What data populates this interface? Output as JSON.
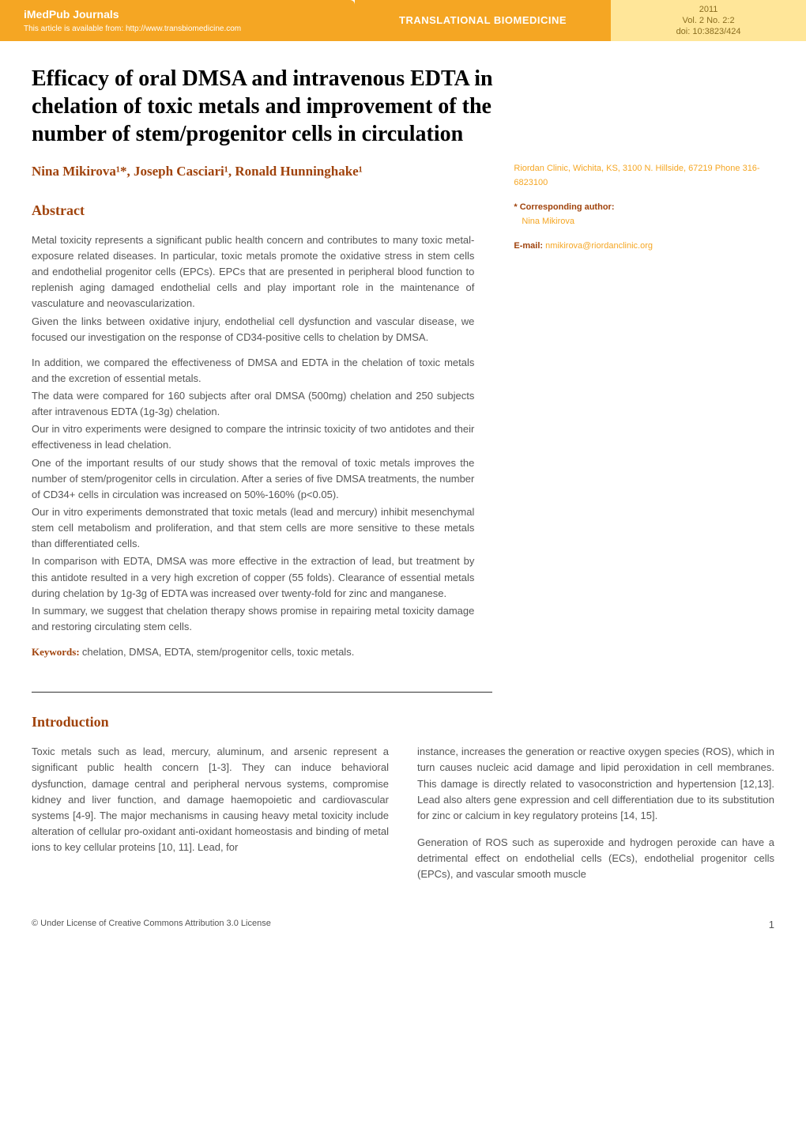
{
  "header": {
    "journal_name": "iMedPub Journals",
    "article_link_prefix": "This article is available from: ",
    "article_link_url": "http://www.transbiomedicine.com",
    "center_title": "TRANSLATIONAL BIOMEDICINE",
    "year": "2011",
    "volume": "Vol. 2 No. 2:2",
    "doi": "doi: 10:3823/424",
    "colors": {
      "orange": "#f5a623",
      "light_yellow": "#ffe699",
      "dark_orange_text": "#a0430c",
      "olive_text": "#8a6d1f"
    }
  },
  "title": "Efficacy of oral DMSA and intravenous EDTA in chelation of toxic metals and improvement of the number of stem/progenitor cells in circulation",
  "authors": "Nina Mikirova¹*, Joseph Casciari¹, Ronald Hunninghake¹",
  "affiliation": {
    "text": "Riordan Clinic, Wichita, KS, 3100 N. Hillside, 67219 Phone 316-6823100",
    "corresponding_label": "*  Corresponding author:",
    "corresponding_name": "Nina Mikirova",
    "email_label": "E-mail: ",
    "email_value": "nmikirova@riordanclinic.org"
  },
  "abstract": {
    "heading": "Abstract",
    "paragraphs": [
      "Metal toxicity represents a significant public health concern and contributes to many toxic metal-exposure related diseases. In particular, toxic metals promote the oxidative stress in stem cells and endothelial progenitor cells (EPCs). EPCs that are presented in peripheral blood function to replenish aging damaged endothelial cells and play important role in the maintenance of vasculature and neovascularization.",
      "Given the links between oxidative injury, endothelial cell dysfunction and vascular disease, we focused our investigation on the response of CD34-positive cells to chelation by DMSA.",
      "In addition, we compared the effectiveness of DMSA and EDTA in the chelation of toxic metals and the excretion of essential metals.",
      "The data were compared for 160 subjects after oral DMSA (500mg) chelation and 250 subjects after intravenous EDTA (1g-3g) chelation.",
      "Our in vitro experiments were designed to compare the intrinsic toxicity of two antidotes and their effectiveness in lead chelation.",
      "One of the important results of our study shows that the removal of toxic metals improves the number of stem/progenitor cells in circulation. After a series of five DMSA treatments, the number of CD34+ cells in circulation was increased on 50%-160% (p<0.05).",
      "Our in vitro experiments demonstrated that toxic metals (lead and mercury) inhibit mesenchymal stem cell metabolism and proliferation, and that stem cells are more sensitive to these metals than differentiated cells.",
      "In comparison with EDTA, DMSA was more effective in the extraction of lead, but treatment by this antidote resulted in a very high excretion of copper (55 folds). Clearance of essential metals during chelation by 1g-3g of EDTA was increased over twenty-fold for zinc and manganese.",
      "In summary, we suggest that chelation therapy shows promise in repairing metal toxicity damage and restoring circulating stem cells."
    ],
    "keywords_label": "Keywords: ",
    "keywords_value": "chelation, DMSA, EDTA, stem/progenitor cells, toxic metals."
  },
  "introduction": {
    "heading": "Introduction",
    "left_paragraph": "Toxic metals such as lead, mercury, aluminum, and arsenic represent a significant public health concern [1-3]. They can induce behavioral dysfunction, damage central and peripheral nervous systems, compromise kidney and liver function, and damage haemopoietic and cardiovascular systems [4-9]. The major mechanisms in causing heavy metal toxicity include alteration of cellular pro-oxidant anti-oxidant homeostasis and binding of metal ions to key cellular proteins [10, 11]. Lead, for",
    "right_paragraph_1": "instance, increases the generation or reactive oxygen species (ROS), which in turn causes nucleic acid damage and lipid peroxidation in cell membranes. This damage is directly related to vasoconstriction and hypertension [12,13]. Lead also alters gene expression and cell differentiation due to its substitution for zinc or calcium in key regulatory proteins [14, 15].",
    "right_paragraph_2": "Generation of ROS such as superoxide and hydrogen peroxide can have a detrimental effect on endothelial cells (ECs), endothelial progenitor cells (EPCs), and vascular smooth muscle"
  },
  "footer": {
    "license": "© Under License of Creative Commons Attribution 3.0 License",
    "page_number": "1"
  },
  "typography": {
    "title_fontsize_pt": 28,
    "title_font": "Georgia serif",
    "heading_fontsize_pt": 18,
    "heading_color": "#a0430c",
    "body_fontsize_pt": 13,
    "body_color": "#555555",
    "author_fontsize_pt": 17,
    "sidebar_fontsize_pt": 11
  }
}
